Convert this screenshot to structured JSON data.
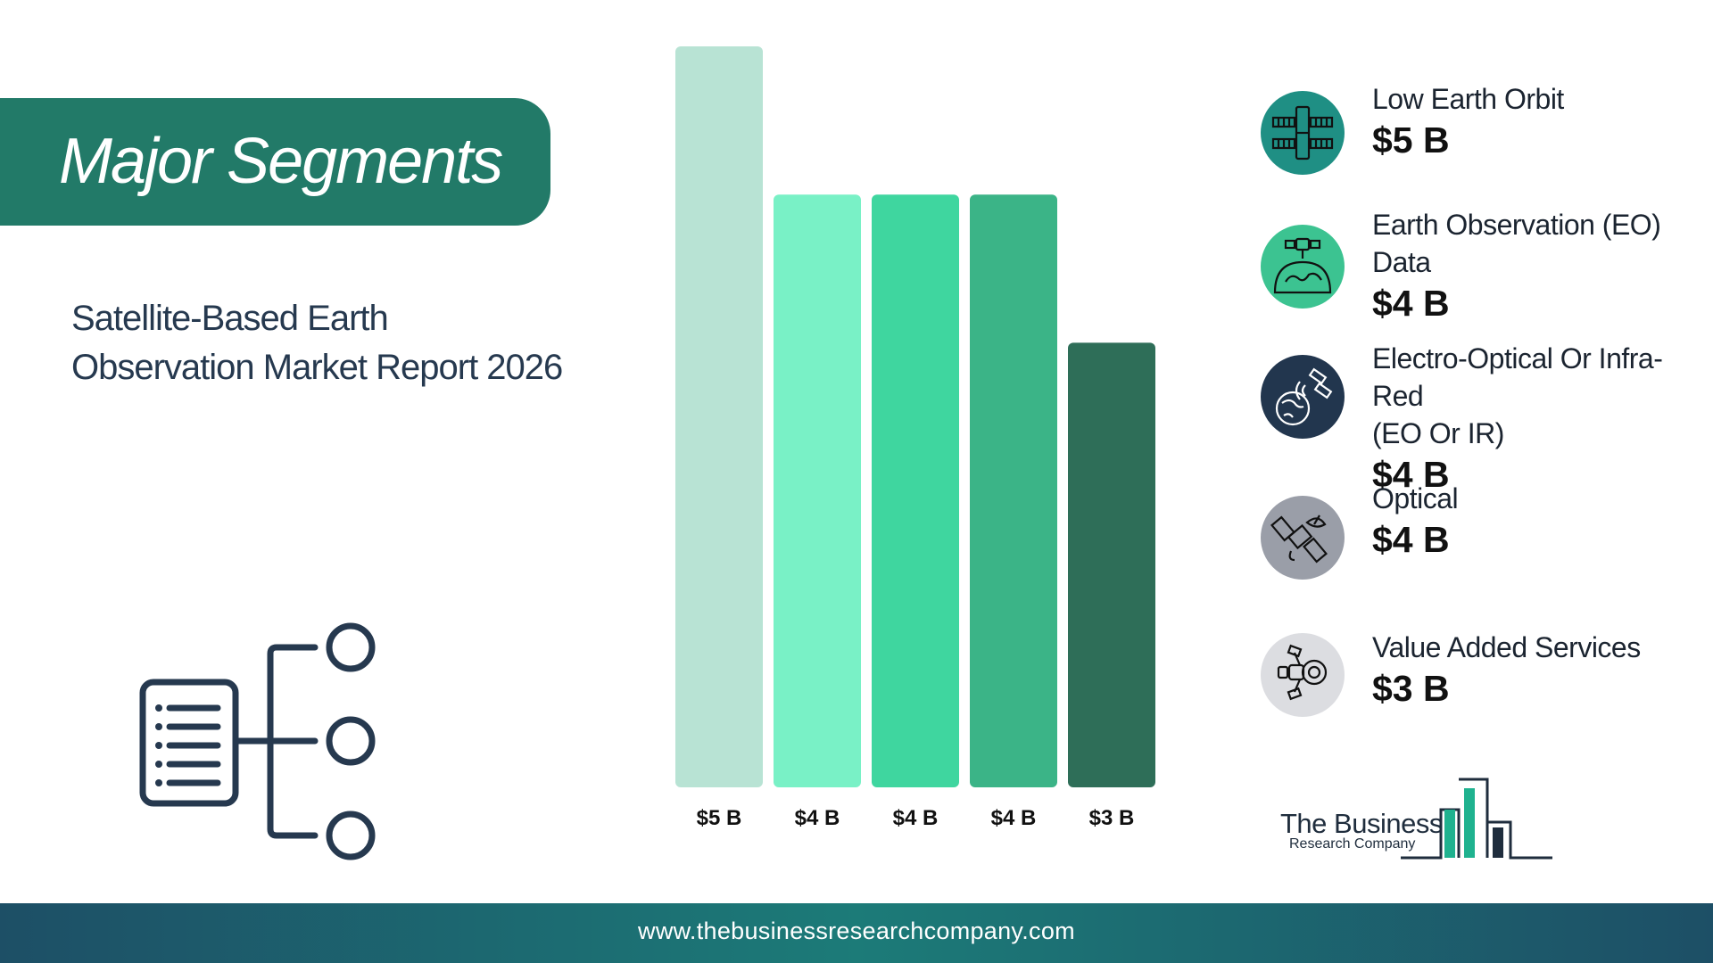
{
  "banner": {
    "title": "Major Segments"
  },
  "subtitle": {
    "line1": "Satellite-Based Earth",
    "line2": "Observation Market Report 2026"
  },
  "chart_data": {
    "type": "bar",
    "title": "",
    "xlabel": "",
    "ylabel": "",
    "ylim": [
      0,
      5
    ],
    "grid": false,
    "legend_placement": "right",
    "categories": [
      "Low Earth Orbit",
      "Earth Observation (EO) Data",
      "Electro-Optical Or Infra-Red (EO Or IR)",
      "Optical",
      "Value Added Services"
    ],
    "values": [
      5,
      4,
      4,
      4,
      3
    ],
    "value_labels": [
      "$5 B",
      "$4 B",
      "$4 B",
      "$4 B",
      "$3 B"
    ],
    "colors": [
      "#b8e3d4",
      "#79f1c6",
      "#3fd69f",
      "#3bb487",
      "#2e6e58"
    ]
  },
  "legend": {
    "items": [
      {
        "label_lines": [
          "Low Earth Orbit"
        ],
        "value": "$5 B",
        "icon": "satellite-icon",
        "circle_color": "#1f8f84"
      },
      {
        "label_lines": [
          "Earth Observation (EO)",
          "Data"
        ],
        "value": "$4 B",
        "icon": "earth-satellite-icon",
        "circle_color": "#3cc391"
      },
      {
        "label_lines": [
          "Electro-Optical Or Infra-Red",
          "(EO Or IR)"
        ],
        "value": "$4 B",
        "icon": "globe-satellite-icon",
        "circle_color": "#22364e"
      },
      {
        "label_lines": [
          "Optical"
        ],
        "value": "$4 B",
        "icon": "satellite-dish-icon",
        "circle_color": "#9a9ea8"
      },
      {
        "label_lines": [
          "Value Added Services"
        ],
        "value": "$3 B",
        "icon": "satellite-camera-icon",
        "circle_color": "#dcdde1"
      }
    ]
  },
  "logo": {
    "line1": "The Business",
    "line2": "Research Company"
  },
  "footer": {
    "url": "www.thebusinessresearchcompany.com"
  }
}
